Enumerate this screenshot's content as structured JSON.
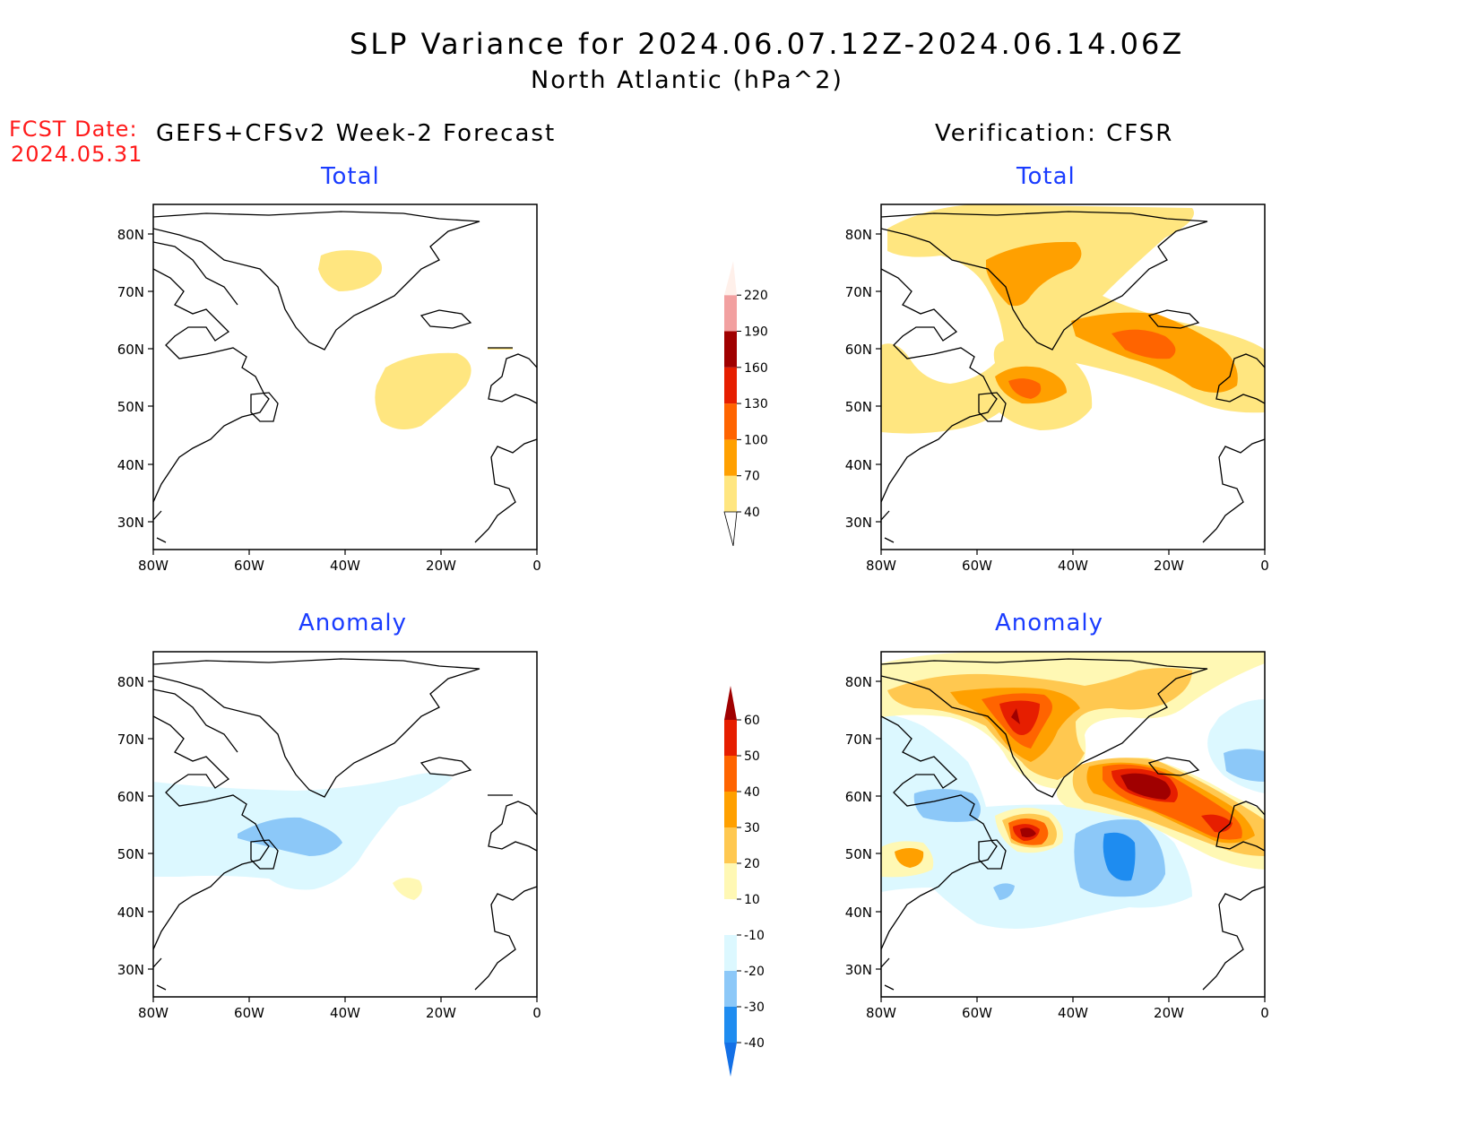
{
  "title": "SLP Variance for 2024.06.07.12Z-2024.06.14.06Z",
  "subtitle": "North Atlantic (hPa^2)",
  "fcst_label": "FCST Date:",
  "fcst_date": "2024.05.31",
  "left_header": "GEFS+CFSv2 Week-2 Forecast",
  "right_header": "Verification: CFSR",
  "panel_titles": {
    "forecast_total": "Total",
    "forecast_anomaly": "Anomaly",
    "verification_total": "Total",
    "verification_anomaly": "Anomaly"
  },
  "lat_ticks": [
    "80N",
    "70N",
    "60N",
    "50N",
    "40N",
    "30N"
  ],
  "lon_ticks": [
    "80W",
    "60W",
    "40W",
    "20W",
    "0"
  ],
  "total_colorbar": {
    "levels": [
      "40",
      "70",
      "100",
      "130",
      "160",
      "190",
      "220"
    ],
    "colors": [
      "#ffe680",
      "#ffa000",
      "#ff6400",
      "#e61e00",
      "#a00000",
      "#f2a0a0",
      "#fff0ea",
      "#fdd8d0"
    ]
  },
  "anomaly_colorbar": {
    "levels": [
      "-40",
      "-30",
      "-20",
      "-10",
      "10",
      "20",
      "30",
      "40",
      "50",
      "60"
    ],
    "colors": [
      "#1470e6",
      "#1e8cf0",
      "#8cc8f8",
      "#dcf8ff",
      "#ffffff",
      "#fff8b4",
      "#ffc850",
      "#ffa000",
      "#ff6400",
      "#e61e00",
      "#a00000"
    ]
  },
  "chart_data": {
    "type": "contour-map",
    "region": "North Atlantic",
    "units": "hPa^2",
    "lon_range": [
      -80,
      0
    ],
    "lat_range": [
      25,
      85
    ],
    "panels": [
      {
        "name": "forecast_total",
        "features": [
          {
            "lon": -42,
            "lat": 72,
            "level": "40-70"
          },
          {
            "lon": -22,
            "lat": 52,
            "level": "40-70"
          }
        ]
      },
      {
        "name": "verification_total",
        "features": [
          {
            "lon": -45,
            "lat": 74,
            "level": "70-100"
          },
          {
            "lon": -25,
            "lat": 62,
            "level": "100-130"
          },
          {
            "lon": -50,
            "lat": 53,
            "level": "100-130"
          }
        ]
      },
      {
        "name": "forecast_anomaly",
        "features": [
          {
            "lon": -50,
            "lat": 53,
            "level": "-20 to -10"
          },
          {
            "lon": -27,
            "lat": 44,
            "level": "10-20"
          }
        ]
      },
      {
        "name": "verification_anomaly",
        "features": [
          {
            "lon": -50,
            "lat": 75,
            "level": "50-60"
          },
          {
            "lon": -25,
            "lat": 61,
            "level": ">60"
          },
          {
            "lon": -50,
            "lat": 53,
            "level": ">60"
          },
          {
            "lon": -28,
            "lat": 50,
            "level": "-30 to -20"
          },
          {
            "lon": -73,
            "lat": 50,
            "level": "20-30"
          },
          {
            "lon": -5,
            "lat": 64,
            "level": "-20 to -10"
          }
        ]
      }
    ]
  }
}
